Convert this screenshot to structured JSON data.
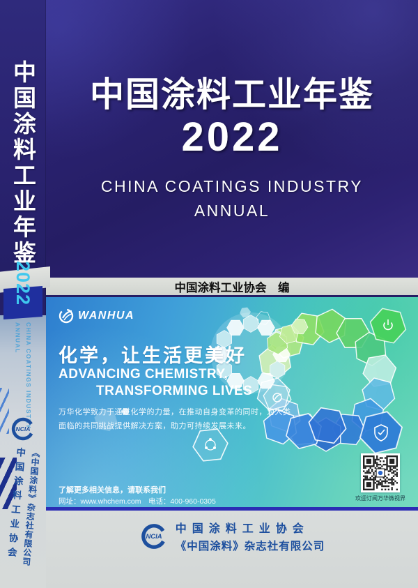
{
  "book": {
    "spine": {
      "title": "中国涂料工业年鉴",
      "year": "2022",
      "english_line1": "CHINA COATINGS INDUSTRY",
      "english_line2": "ANNUAL",
      "logo": "NCIA",
      "association": "中国涂料工业协会",
      "publisher": "《中国涂料》杂志社有限公司"
    },
    "cover": {
      "title": "中国涂料工业年鉴",
      "year": "2022",
      "english_title_line1": "CHINA COATINGS INDUSTRY",
      "english_title_line2": "ANNUAL",
      "editor_credit": "中国涂料工业协会　编"
    },
    "ad_banner": {
      "brand": "WANHUA",
      "slogan_cn": "化学，让生活更美好",
      "slogan_en_line1": "ADVANCING CHEMISTRY,",
      "slogan_en_line2": "TRANSFORMING LIVES",
      "description_line1": "万华化学致力于通过化学的力量，在推动自身变革的同时，为人类",
      "description_line2": "面临的共同挑战提供解决方案，助力可持续发展未来。",
      "contact_intro": "了解更多相关信息，请联系我们",
      "contact_details": "网址：www.whchem.com　电话：400-960-0305",
      "qr_caption": "欢迎订阅万华微视界"
    },
    "footer": {
      "logo": "NCIA",
      "association": "中国涂料工业协会",
      "publisher": "《中国涂料》杂志社有限公司"
    }
  },
  "colors": {
    "cover_indigo": "#2a2270",
    "spine_navy_block": "#1f2f9e",
    "cyan_accent": "#3fc8ee",
    "banner_blue_left": "#2e7ecf",
    "banner_teal_right": "#67d3bd",
    "banner_bottom_line": "#2b2db4",
    "band_gray": "#d8dbd6",
    "footer_blue": "#1d4f9e"
  }
}
